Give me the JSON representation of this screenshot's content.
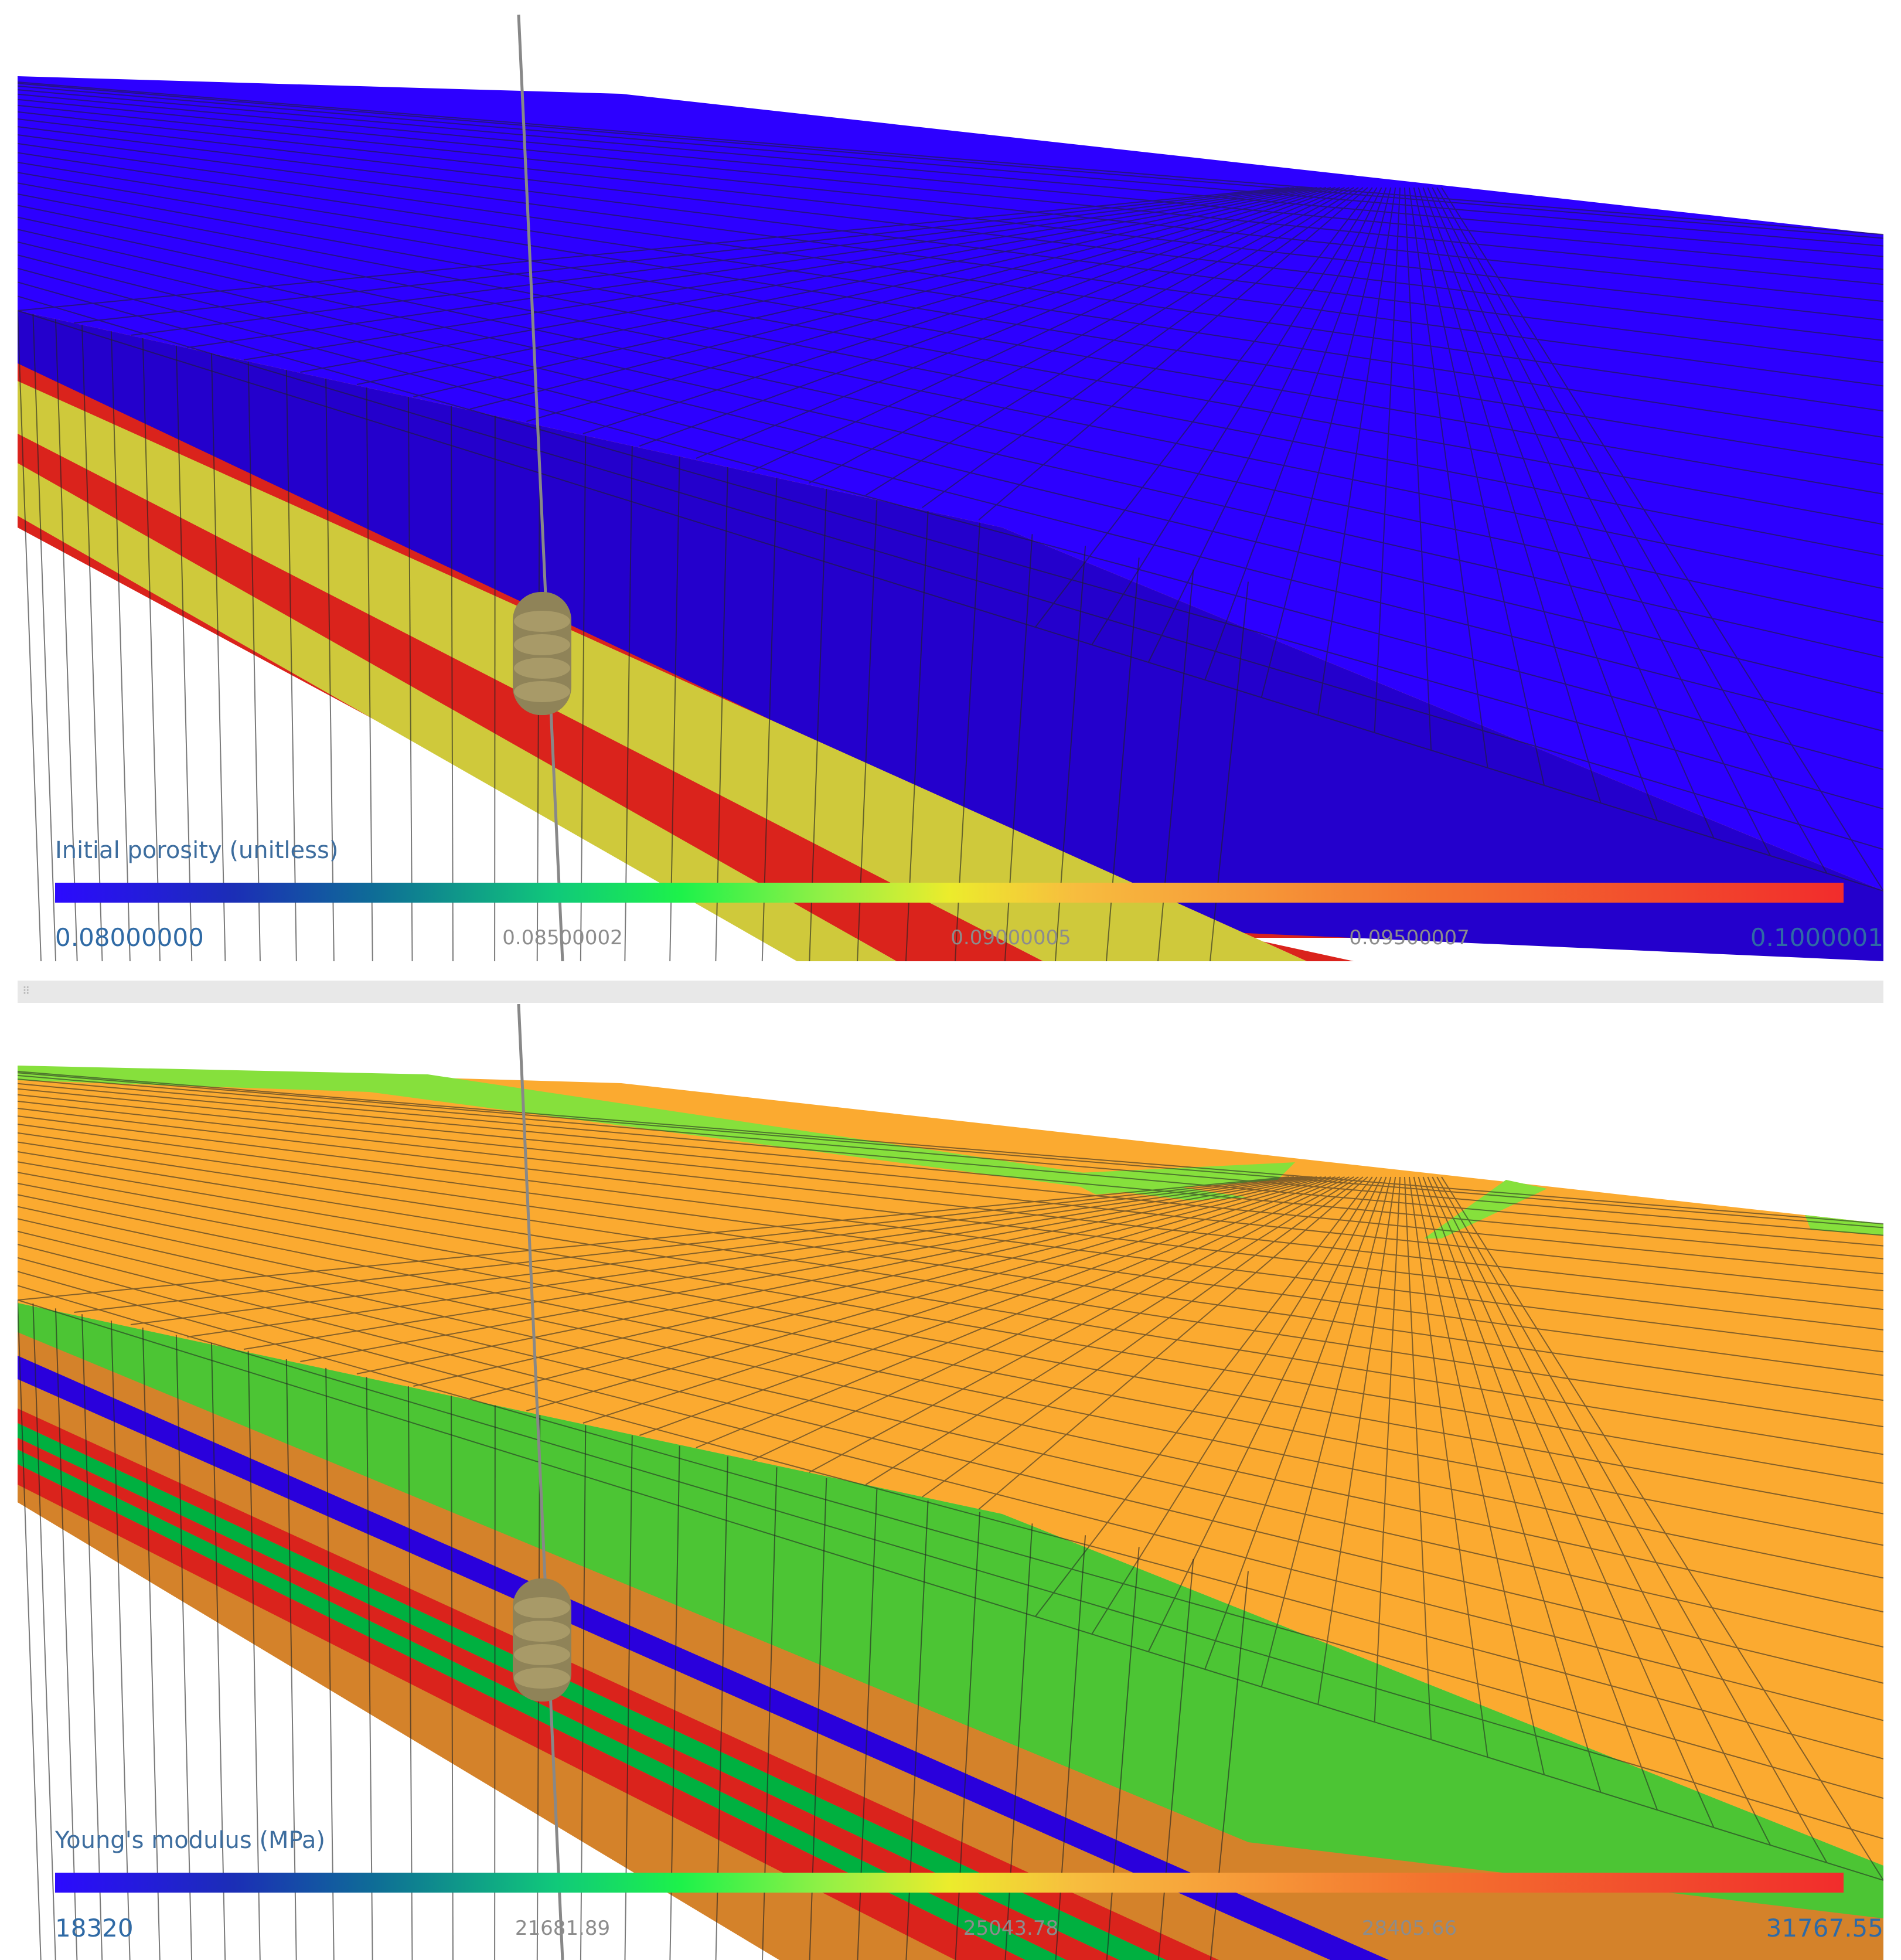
{
  "panels": [
    {
      "legend_title": "Initial porosity (unitless)",
      "ticks": [
        "0.08000000",
        "0.08500002",
        "0.09000005",
        "0.09500007",
        "0.1000001"
      ],
      "top_color": "#2d00ff",
      "front_color": "#2a00dc"
    },
    {
      "legend_title": "Young's modulus (MPa)",
      "ticks": [
        "18320",
        "21681.89",
        "25043.78",
        "28405.66",
        "31767.55"
      ],
      "top_color": "#fbaa30",
      "front_color": "#4cc534"
    }
  ],
  "colors": {
    "blue": "#2d00ff",
    "yellow": "#cfc93b",
    "red": "#da231c",
    "orange": "#fbaa30",
    "dark_orange": "#d4822a",
    "green": "#4cc534",
    "bright_green": "#00b040",
    "well_tool": "#8f8358",
    "grid_line": "#222222"
  }
}
